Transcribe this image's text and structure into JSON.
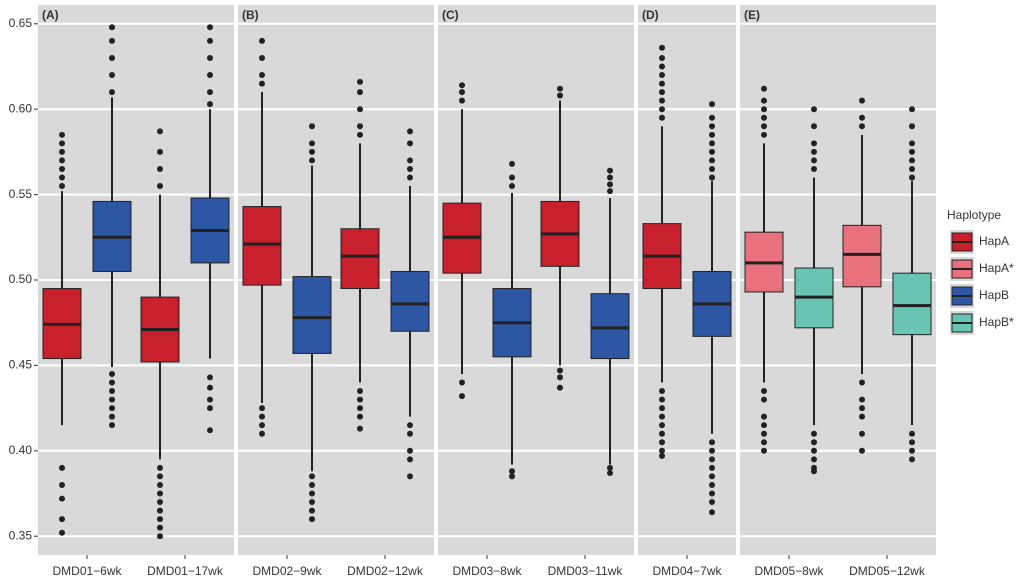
{
  "chart_data": [
    {
      "type": "box",
      "title": "(A)",
      "categories": [
        "DMD01−6wk",
        "DMD01−17wk"
      ],
      "ylim": [
        0.339,
        0.661
      ],
      "yticks": [
        0.35,
        {
          "value": 0.4,
          "label": "0.40"
        },
        0.45,
        {
          "value": 0.5,
          "label": "0.50"
        },
        0.55,
        {
          "value": 0.6,
          "label": "0.60"
        },
        0.65
      ],
      "series": [
        {
          "name": "HapA",
          "color": "#c9202e",
          "min": [
            0.415,
            0.395
          ],
          "q1": [
            0.454,
            0.452
          ],
          "median": [
            0.474,
            0.471
          ],
          "q3": [
            0.495,
            0.49
          ],
          "max": [
            0.552,
            0.55
          ],
          "outliers": [
            [
              0.39,
              0.38,
              0.372,
              0.36,
              0.352,
              0.555,
              0.56,
              0.565,
              0.57,
              0.575,
              0.58,
              0.585
            ],
            [
              0.39,
              0.385,
              0.38,
              0.375,
              0.37,
              0.365,
              0.36,
              0.355,
              0.35,
              0.555,
              0.565,
              0.575,
              0.587
            ]
          ]
        },
        {
          "name": "HapB",
          "color": "#2d56a5",
          "min": [
            0.449,
            0.454
          ],
          "q1": [
            0.505,
            0.51
          ],
          "median": [
            0.525,
            0.529
          ],
          "q3": [
            0.546,
            0.548
          ],
          "max": [
            0.607,
            0.6
          ],
          "outliers": [
            [
              0.445,
              0.44,
              0.435,
              0.43,
              0.425,
              0.42,
              0.415,
              0.61,
              0.62,
              0.63,
              0.64,
              0.648
            ],
            [
              0.443,
              0.437,
              0.43,
              0.425,
              0.412,
              0.603,
              0.61,
              0.62,
              0.63,
              0.64,
              0.648
            ]
          ]
        }
      ]
    },
    {
      "type": "box",
      "title": "(B)",
      "categories": [
        "DMD02−9wk",
        "DMD02−12wk"
      ],
      "series": [
        {
          "name": "HapA",
          "color": "#c9202e",
          "min": [
            0.428,
            0.44
          ],
          "q1": [
            0.497,
            0.495
          ],
          "median": [
            0.521,
            0.514
          ],
          "q3": [
            0.543,
            0.53
          ],
          "max": [
            0.61,
            0.58
          ],
          "outliers": [
            [
              0.425,
              0.42,
              0.415,
              0.41,
              0.615,
              0.62,
              0.63,
              0.64
            ],
            [
              0.435,
              0.43,
              0.425,
              0.42,
              0.413,
              0.585,
              0.59,
              0.6,
              0.61,
              0.616
            ]
          ]
        },
        {
          "name": "HapB",
          "color": "#2d56a5",
          "min": [
            0.388,
            0.42
          ],
          "q1": [
            0.457,
            0.47
          ],
          "median": [
            0.478,
            0.486
          ],
          "q3": [
            0.502,
            0.505
          ],
          "max": [
            0.567,
            0.555
          ],
          "outliers": [
            [
              0.385,
              0.38,
              0.375,
              0.37,
              0.365,
              0.36,
              0.57,
              0.575,
              0.58,
              0.59
            ],
            [
              0.415,
              0.41,
              0.4,
              0.395,
              0.385,
              0.56,
              0.565,
              0.57,
              0.58,
              0.587
            ]
          ]
        }
      ]
    },
    {
      "type": "box",
      "title": "(C)",
      "categories": [
        "DMD03−8wk",
        "DMD03−11wk"
      ],
      "series": [
        {
          "name": "HapA",
          "color": "#c9202e",
          "min": [
            0.445,
            0.45
          ],
          "q1": [
            0.504,
            0.508
          ],
          "median": [
            0.525,
            0.527
          ],
          "q3": [
            0.545,
            0.546
          ],
          "max": [
            0.6,
            0.605
          ],
          "outliers": [
            [
              0.44,
              0.432,
              0.605,
              0.61,
              0.614
            ],
            [
              0.447,
              0.443,
              0.437,
              0.608,
              0.612
            ]
          ]
        },
        {
          "name": "HapB",
          "color": "#2d56a5",
          "min": [
            0.392,
            0.392
          ],
          "q1": [
            0.455,
            0.454
          ],
          "median": [
            0.475,
            0.472
          ],
          "q3": [
            0.495,
            0.492
          ],
          "max": [
            0.551,
            0.548
          ],
          "outliers": [
            [
              0.388,
              0.385,
              0.555,
              0.56,
              0.568
            ],
            [
              0.39,
              0.387,
              0.552,
              0.556,
              0.56,
              0.564
            ]
          ]
        }
      ]
    },
    {
      "type": "box",
      "title": "(D)",
      "categories": [
        "DMD04−7wk"
      ],
      "series": [
        {
          "name": "HapA",
          "color": "#c9202e",
          "min": [
            0.44
          ],
          "q1": [
            0.495
          ],
          "median": [
            0.514
          ],
          "q3": [
            0.533
          ],
          "max": [
            0.59
          ],
          "outliers": [
            [
              0.435,
              0.43,
              0.425,
              0.42,
              0.415,
              0.41,
              0.405,
              0.4,
              0.397,
              0.595,
              0.6,
              0.605,
              0.61,
              0.615,
              0.62,
              0.625,
              0.63,
              0.636
            ]
          ]
        },
        {
          "name": "HapB",
          "color": "#2d56a5",
          "min": [
            0.41
          ],
          "q1": [
            0.467
          ],
          "median": [
            0.486
          ],
          "q3": [
            0.505
          ],
          "max": [
            0.558
          ],
          "outliers": [
            [
              0.405,
              0.4,
              0.395,
              0.39,
              0.385,
              0.38,
              0.375,
              0.37,
              0.364,
              0.56,
              0.565,
              0.57,
              0.575,
              0.58,
              0.585,
              0.59,
              0.595,
              0.603
            ]
          ]
        }
      ]
    },
    {
      "type": "box",
      "title": "(E)",
      "categories": [
        "DMD05−8wk",
        "DMD05−12wk"
      ],
      "series": [
        {
          "name": "HapA*",
          "color": "#e9717e",
          "min": [
            0.44,
            0.445
          ],
          "q1": [
            0.493,
            0.496
          ],
          "median": [
            0.51,
            0.515
          ],
          "q3": [
            0.528,
            0.532
          ],
          "max": [
            0.58,
            0.585
          ],
          "outliers": [
            [
              0.435,
              0.43,
              0.42,
              0.415,
              0.41,
              0.405,
              0.4,
              0.585,
              0.59,
              0.595,
              0.6,
              0.605,
              0.612
            ],
            [
              0.44,
              0.43,
              0.425,
              0.42,
              0.41,
              0.4,
              0.59,
              0.595,
              0.605
            ]
          ]
        },
        {
          "name": "HapB*",
          "color": "#6ac4b3",
          "min": [
            0.415,
            0.415
          ],
          "q1": [
            0.472,
            0.468
          ],
          "median": [
            0.49,
            0.485
          ],
          "q3": [
            0.507,
            0.504
          ],
          "max": [
            0.56,
            0.558
          ],
          "outliers": [
            [
              0.41,
              0.405,
              0.4,
              0.395,
              0.39,
              0.388,
              0.565,
              0.57,
              0.575,
              0.58,
              0.59,
              0.6
            ],
            [
              0.41,
              0.405,
              0.4,
              0.395,
              0.56,
              0.565,
              0.57,
              0.575,
              0.58,
              0.59,
              0.6
            ]
          ]
        }
      ]
    }
  ],
  "legend": {
    "title": "Haplotype"
  }
}
